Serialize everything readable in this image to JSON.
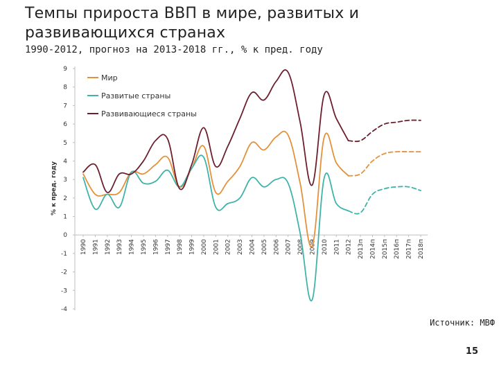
{
  "slide": {
    "title": "Темпы прироста ВВП в мире, развитых и развивающихся странах",
    "subtitle": "1990-2012, прогноз на 2013-2018 гг., % к пред. году",
    "source": "Источник: МВФ",
    "page_number": "15"
  },
  "chart_data": {
    "type": "line",
    "title": "",
    "xlabel": "",
    "ylabel": "% к пред. году",
    "ylim": [
      -4,
      9
    ],
    "yticks": [
      9,
      8,
      7,
      6,
      5,
      4,
      3,
      2,
      1,
      0,
      -1,
      -2,
      -3,
      -4
    ],
    "categories": [
      "1990",
      "1991",
      "1992",
      "1993",
      "1994",
      "1995",
      "1996",
      "1997",
      "1998",
      "1999",
      "2000",
      "2001",
      "2002",
      "2003",
      "2004",
      "2005",
      "2006",
      "2007",
      "2008",
      "2009",
      "2010",
      "2011",
      "2012",
      "2013п",
      "2014п",
      "2015п",
      "2016п",
      "2017п",
      "2018п"
    ],
    "forecast_start_index": 22,
    "grid": false,
    "legend": "top-left",
    "series": [
      {
        "name": "Мир",
        "color": "#e3913a",
        "values": [
          3.3,
          2.2,
          2.2,
          2.3,
          3.4,
          3.3,
          3.8,
          4.2,
          2.6,
          3.6,
          4.8,
          2.3,
          2.9,
          3.7,
          5.0,
          4.6,
          5.3,
          5.4,
          2.8,
          -0.6,
          5.3,
          3.9,
          3.2,
          3.3,
          4.0,
          4.4,
          4.5,
          4.5,
          4.5
        ]
      },
      {
        "name": "Развитые страны",
        "color": "#3fb3a8",
        "values": [
          3.1,
          1.4,
          2.2,
          1.5,
          3.4,
          2.8,
          2.9,
          3.5,
          2.6,
          3.6,
          4.2,
          1.5,
          1.7,
          2.0,
          3.1,
          2.6,
          3.0,
          2.8,
          0.1,
          -3.5,
          3.1,
          1.7,
          1.3,
          1.2,
          2.2,
          2.5,
          2.6,
          2.6,
          2.4
        ]
      },
      {
        "name": "Развивающиеся страны",
        "color": "#6b1f2e",
        "values": [
          3.4,
          3.8,
          2.3,
          3.3,
          3.3,
          4.0,
          5.1,
          5.2,
          2.5,
          3.8,
          5.8,
          3.7,
          4.8,
          6.3,
          7.7,
          7.3,
          8.3,
          8.8,
          6.1,
          2.7,
          7.6,
          6.3,
          5.1,
          5.1,
          5.6,
          6.0,
          6.1,
          6.2,
          6.2
        ]
      }
    ]
  }
}
